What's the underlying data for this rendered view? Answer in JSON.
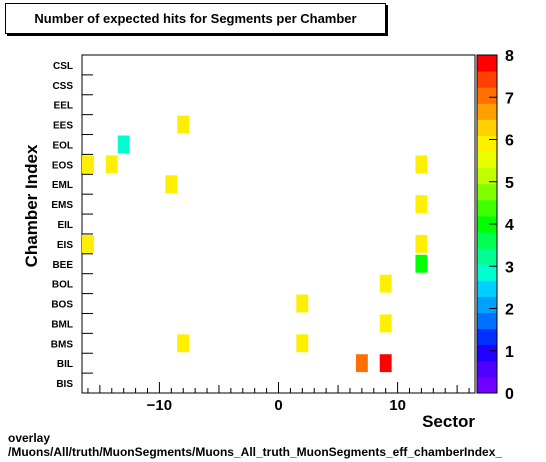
{
  "chart_data": {
    "type": "heatmap",
    "title": "Number of expected hits for Segments per Chamber",
    "xlabel": "Sector",
    "ylabel": "Chamber Index",
    "xlim": [
      -16.5,
      16.5
    ],
    "x_ticks": [
      -10,
      0,
      10
    ],
    "y_categories": [
      "BIS",
      "BIL",
      "BMS",
      "BML",
      "BOS",
      "BOL",
      "BEE",
      "EIS",
      "EIL",
      "EMS",
      "EML",
      "EOS",
      "EOL",
      "EES",
      "EEL",
      "CSS",
      "CSL"
    ],
    "zlim": [
      0,
      8
    ],
    "z_ticks": [
      0,
      1,
      2,
      3,
      4,
      5,
      6,
      7,
      8
    ],
    "cells": [
      {
        "x": -16,
        "y": "EOS",
        "z": 6
      },
      {
        "x": -14,
        "y": "EOS",
        "z": 6
      },
      {
        "x": -16,
        "y": "EIS",
        "z": 6
      },
      {
        "x": -13,
        "y": "EOL",
        "z": 3
      },
      {
        "x": -9,
        "y": "EML",
        "z": 6
      },
      {
        "x": -8,
        "y": "EES",
        "z": 6
      },
      {
        "x": -8,
        "y": "BMS",
        "z": 6
      },
      {
        "x": 2,
        "y": "BOS",
        "z": 6
      },
      {
        "x": 2,
        "y": "BMS",
        "z": 6
      },
      {
        "x": 7,
        "y": "BIL",
        "z": 7
      },
      {
        "x": 9,
        "y": "BIL",
        "z": 8
      },
      {
        "x": 9,
        "y": "BOL",
        "z": 6
      },
      {
        "x": 9,
        "y": "BML",
        "z": 6
      },
      {
        "x": 12,
        "y": "EOS",
        "z": 6
      },
      {
        "x": 12,
        "y": "EMS",
        "z": 6
      },
      {
        "x": 12,
        "y": "EIS",
        "z": 6
      },
      {
        "x": 12,
        "y": "BEE",
        "z": 4
      }
    ],
    "palette": [
      "#7000ff",
      "#5000ff",
      "#2000ff",
      "#0030ff",
      "#0070ff",
      "#00a0ff",
      "#00d0ff",
      "#00ffd0",
      "#00ff90",
      "#00ff50",
      "#00ff00",
      "#40ff00",
      "#80ff00",
      "#c0ff00",
      "#e8ff00",
      "#fff000",
      "#ffd000",
      "#ffa000",
      "#ff7000",
      "#ff4000",
      "#ff0000"
    ]
  },
  "footer": {
    "line1": "overlay",
    "line2": "/Muons/All/truth/MuonSegments/Muons_All_truth_MuonSegments_eff_chamberIndex_"
  }
}
